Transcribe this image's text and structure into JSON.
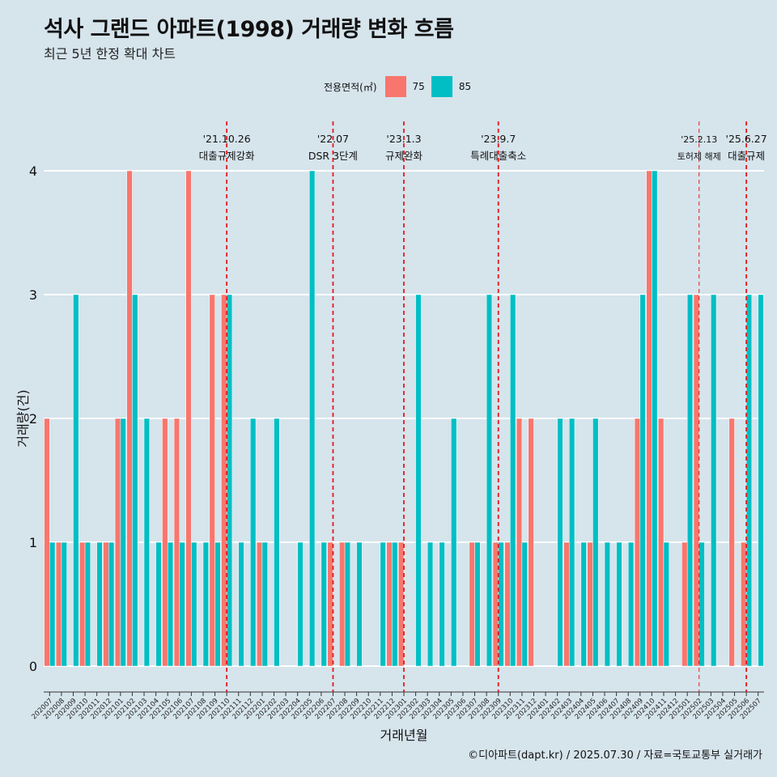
{
  "title": "석사 그랜드 아파트(1998) 거래량 변화 흐름",
  "subtitle": "최근 5년 한정 확대 차트",
  "legend": {
    "title": "전용면적(㎡)",
    "items": [
      {
        "label": "75",
        "color": "#F8766D"
      },
      {
        "label": "85",
        "color": "#00BFC4"
      }
    ]
  },
  "caption": "©디아파트(dapt.kr) / 2025.07.30 / 자료=국토교통부 실거래가",
  "chart_data": {
    "type": "bar",
    "xlabel": "거래년월",
    "ylabel": "거래량(건)",
    "ylim": [
      0,
      4
    ],
    "yticks": [
      0,
      1,
      2,
      3,
      4
    ],
    "grid": true,
    "legend_position": "top",
    "categories": [
      "202007",
      "202008",
      "202009",
      "202010",
      "202011",
      "202012",
      "202101",
      "202102",
      "202103",
      "202104",
      "202105",
      "202106",
      "202107",
      "202108",
      "202109",
      "202110",
      "202111",
      "202112",
      "202201",
      "202202",
      "202203",
      "202204",
      "202205",
      "202206",
      "202207",
      "202208",
      "202209",
      "202210",
      "202211",
      "202212",
      "202301",
      "202302",
      "202303",
      "202304",
      "202305",
      "202306",
      "202307",
      "202308",
      "202309",
      "202310",
      "202311",
      "202312",
      "202401",
      "202402",
      "202403",
      "202404",
      "202405",
      "202406",
      "202407",
      "202408",
      "202409",
      "202410",
      "202411",
      "202412",
      "202501",
      "202502",
      "202503",
      "202504",
      "202505",
      "202506",
      "202507"
    ],
    "series": [
      {
        "name": "75",
        "color": "#F8766D",
        "values": [
          2,
          1,
          0,
          1,
          0,
          1,
          2,
          4,
          0,
          0,
          2,
          2,
          4,
          0,
          3,
          3,
          0,
          0,
          1,
          0,
          0,
          0,
          0,
          0,
          1,
          1,
          0,
          0,
          0,
          1,
          1,
          0,
          0,
          0,
          0,
          0,
          1,
          0,
          1,
          1,
          2,
          2,
          0,
          0,
          1,
          0,
          1,
          0,
          0,
          0,
          2,
          4,
          2,
          0,
          1,
          3,
          0,
          0,
          2,
          1,
          0
        ]
      },
      {
        "name": "85",
        "color": "#00BFC4",
        "values": [
          1,
          1,
          3,
          1,
          1,
          1,
          2,
          3,
          2,
          1,
          1,
          1,
          1,
          1,
          1,
          3,
          1,
          2,
          1,
          2,
          0,
          1,
          4,
          1,
          0,
          1,
          1,
          0,
          1,
          1,
          0,
          3,
          1,
          1,
          2,
          0,
          1,
          3,
          1,
          3,
          1,
          0,
          0,
          2,
          2,
          1,
          2,
          1,
          1,
          1,
          3,
          4,
          1,
          0,
          3,
          1,
          3,
          0,
          0,
          3,
          3
        ]
      }
    ],
    "events": [
      {
        "date": "'21.10.26",
        "label": "대출규제강화",
        "at": "202110"
      },
      {
        "date": "'22.07",
        "label": "DSR 3단계",
        "at": "202207"
      },
      {
        "date": "'23.1.3",
        "label": "규제완화",
        "at": "202301"
      },
      {
        "date": "'23.9.7",
        "label": "특례대출축소",
        "at": "202309"
      },
      {
        "date": "'25.2.13",
        "label": "토허제 해제",
        "at": "202502"
      },
      {
        "date": "'25.6.27",
        "label": "대출규제",
        "at": "202506"
      }
    ]
  }
}
